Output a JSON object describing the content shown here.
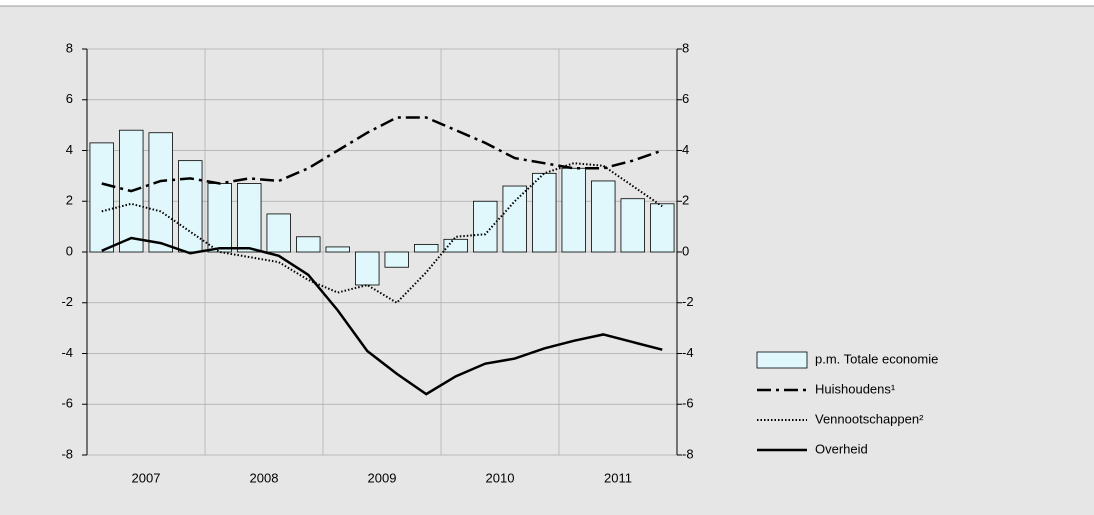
{
  "chart_data": {
    "type": "bar-line",
    "x_labels": [
      "2007",
      "2008",
      "2009",
      "2010",
      "2011"
    ],
    "series": [
      {
        "name": "p.m. Totale economie",
        "kind": "bar",
        "color": "#e0f8fb",
        "values": [
          4.3,
          4.8,
          4.7,
          3.6,
          2.7,
          2.7,
          1.5,
          0.6,
          0.2,
          -1.3,
          -0.6,
          0.3,
          0.5,
          2.0,
          2.6,
          3.1,
          3.3,
          2.8,
          2.1,
          1.9
        ]
      },
      {
        "name": "Huishoudens¹",
        "kind": "line",
        "dash": "dashdot",
        "color": "#000000",
        "values": [
          2.7,
          2.4,
          2.8,
          2.9,
          2.7,
          2.9,
          2.8,
          3.3,
          4.0,
          4.7,
          5.3,
          5.3,
          4.8,
          4.3,
          3.7,
          3.5,
          3.3,
          3.3,
          3.6,
          4.0
        ]
      },
      {
        "name": "Vennootschappen²",
        "kind": "line",
        "dash": "dotted",
        "color": "#000000",
        "values": [
          1.6,
          1.9,
          1.6,
          0.8,
          0.0,
          -0.2,
          -0.4,
          -1.1,
          -1.6,
          -1.3,
          -2.0,
          -0.8,
          0.6,
          0.7,
          2.0,
          3.1,
          3.5,
          3.4,
          2.6,
          1.8
        ]
      },
      {
        "name": "Overheid",
        "kind": "line",
        "dash": "solid",
        "color": "#000000",
        "values": [
          0.05,
          0.55,
          0.35,
          -0.05,
          0.15,
          0.15,
          -0.15,
          -0.9,
          -2.3,
          -3.9,
          -4.8,
          -5.6,
          -4.9,
          -4.4,
          -4.2,
          -3.8,
          -3.5,
          -3.25,
          -3.55,
          -3.85
        ]
      }
    ],
    "ylim": [
      -8,
      8
    ],
    "yticks": [
      -8,
      -6,
      -4,
      -2,
      0,
      2,
      4,
      6,
      8
    ],
    "y2lim": [
      -8,
      8
    ],
    "y2ticks": [
      -8,
      -6,
      -4,
      -2,
      0,
      2,
      4,
      6,
      8
    ],
    "grid": true,
    "legend": "lower right"
  }
}
